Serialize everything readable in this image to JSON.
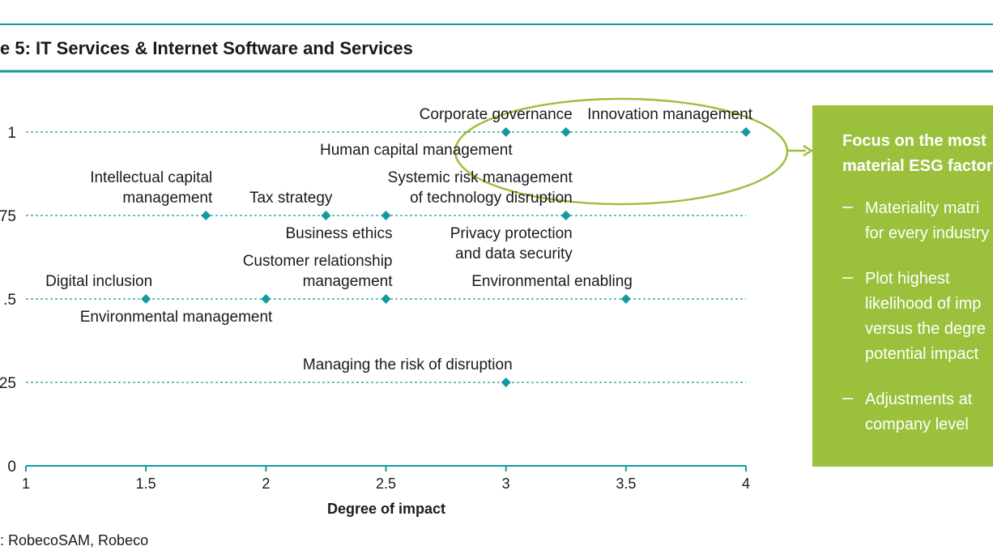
{
  "chart_data": {
    "type": "scatter",
    "title": "e 5: IT Services & Internet Software and Services",
    "xlabel": "Degree of impact",
    "source": ": RobecoSAM, Robeco",
    "xlim": [
      1,
      4
    ],
    "ylim": [
      0,
      1
    ],
    "xticks": [
      1,
      1.5,
      2,
      2.5,
      3,
      3.5,
      4
    ],
    "yticks": [
      0,
      {
        "value": 0.25,
        "label": "25"
      },
      {
        "value": 0.5,
        "label": ".5"
      },
      {
        "value": 0.75,
        "label": "75"
      },
      1
    ],
    "color": "#149a9e",
    "points": [
      {
        "label": [
          "Corporate governance"
        ],
        "x": 3.25,
        "y": 1
      },
      {
        "label": [
          "Innovation management"
        ],
        "x": 4,
        "y": 1
      },
      {
        "label": [
          "Human capital management"
        ],
        "x": 3,
        "y": 1
      },
      {
        "label": [
          "Intellectual capital",
          "management"
        ],
        "x": 1.75,
        "y": 0.75
      },
      {
        "label": [
          "Tax strategy"
        ],
        "x": 2.25,
        "y": 0.75
      },
      {
        "label": [
          "Business ethics"
        ],
        "x": 2.5,
        "y": 0.75
      },
      {
        "label": [
          "Systemic risk management",
          "of technology disruption"
        ],
        "x": 3.25,
        "y": 0.75
      },
      {
        "label": [
          "Privacy protection",
          "and data security"
        ],
        "x": 3.25,
        "y": 0.75
      },
      {
        "label": [
          "Digital inclusion"
        ],
        "x": 1.5,
        "y": 0.5
      },
      {
        "label": [
          "Environmental management"
        ],
        "x": 2,
        "y": 0.5
      },
      {
        "label": [
          "Customer relationship",
          "management"
        ],
        "x": 2.5,
        "y": 0.5
      },
      {
        "label": [
          "Environmental enabling"
        ],
        "x": 3.5,
        "y": 0.5
      },
      {
        "label": [
          "Managing the risk of disruption"
        ],
        "x": 3,
        "y": 0.25
      }
    ],
    "panel": {
      "heading": [
        "Focus on the most",
        "material ESG factor"
      ],
      "bullets": [
        [
          "Materiality matri",
          "for every industry"
        ],
        [
          "Plot highest",
          "likelihood of imp",
          "versus the degre",
          "potential impact"
        ],
        [
          "Adjustments at",
          "company level"
        ]
      ]
    }
  }
}
